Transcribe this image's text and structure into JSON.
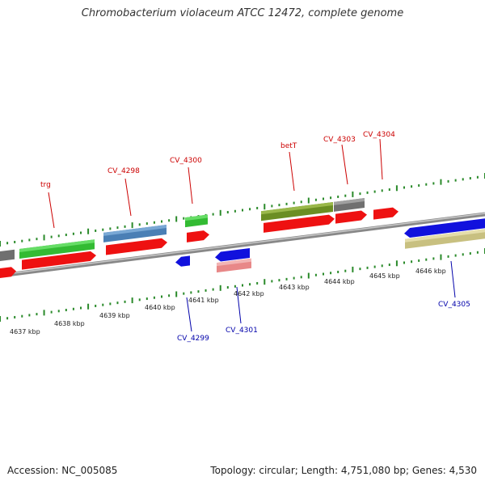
{
  "title": "Chromobacterium violaceum ATCC 12472, complete genome",
  "footer": {
    "accession": "Accession: NC_005085",
    "summary": "Topology: circular; Length: 4,751,080 bp; Genes: 4,530"
  },
  "colors": {
    "backbone": "#888888",
    "forward_label": "#cc0000",
    "reverse_label": "#0000aa",
    "tick": "#2a8a2a",
    "cds_red": "#ee1111",
    "green": "#33bb33",
    "steel_blue": "#4a7fb5",
    "olive": "#6b8e23",
    "gray": "#707070",
    "blue": "#1111dd",
    "pink": "#e88888",
    "khaki": "#c8c080"
  },
  "scale": {
    "unit": "kbp",
    "labels": [
      "4637 kbp",
      "4638 kbp",
      "4639 kbp",
      "4640 kbp",
      "4641 kbp",
      "4642 kbp",
      "4643 kbp",
      "4644 kbp",
      "4645 kbp",
      "4646 kbp"
    ]
  },
  "genes": {
    "forward_labels": [
      "trg",
      "CV_4298",
      "CV_4300",
      "betT",
      "CV_4303",
      "CV_4304"
    ],
    "reverse_labels": [
      "CV_4299",
      "CV_4301",
      "CV_4305"
    ]
  }
}
